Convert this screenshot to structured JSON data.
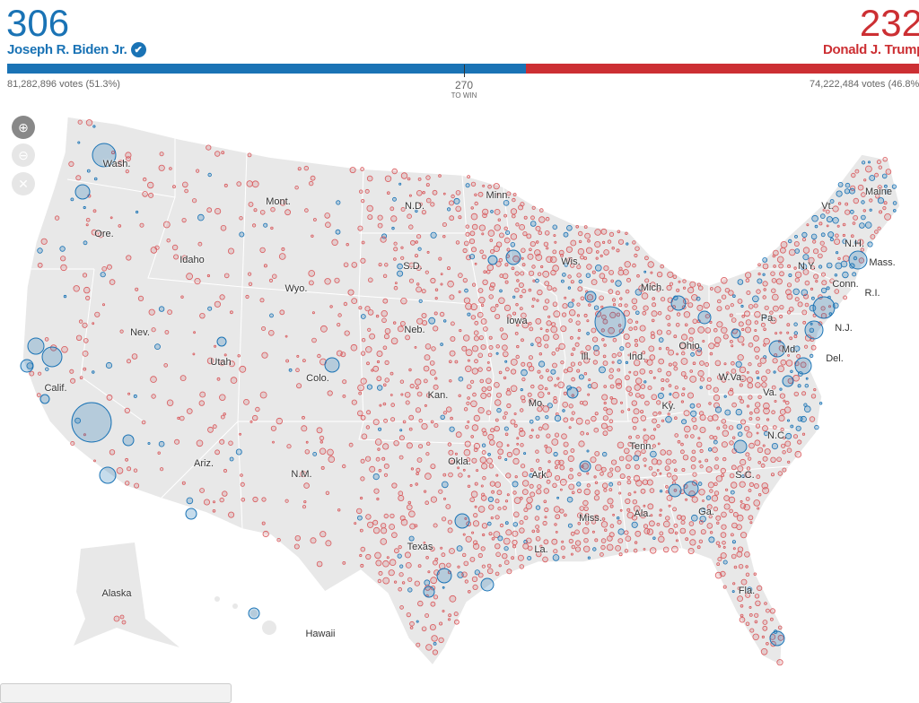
{
  "header": {
    "biden": {
      "electoral_votes": "306",
      "name": "Joseph R. Biden Jr.",
      "votes": "81,282,896 votes (51.3%)",
      "winner_icon": "check-circle-icon",
      "color": "#1a73b5"
    },
    "trump": {
      "electoral_votes": "232",
      "name": "Donald J. Trump",
      "votes": "74,222,484 votes (46.8%)",
      "color": "#cc2f33"
    },
    "to_win_number": "270",
    "to_win_label": "TO WIN",
    "biden_share_of_538": 0.5688
  },
  "controls": {
    "zoom_in": "zoom-in-icon",
    "zoom_out": "zoom-out-icon",
    "reset": "close-icon"
  },
  "map": {
    "states": [
      "Wash.",
      "Ore.",
      "Idaho",
      "Mont.",
      "Wyo.",
      "N.D.",
      "S.D.",
      "Neb.",
      "Kan.",
      "Okla.",
      "Texas",
      "N.M.",
      "Ariz.",
      "Utah",
      "Nev.",
      "Calif.",
      "Colo.",
      "Minn.",
      "Wis.",
      "Iowa",
      "Mo.",
      "Ark.",
      "La.",
      "Miss.",
      "Ala.",
      "Tenn.",
      "Ky.",
      "Ill.",
      "Ind.",
      "Ohio",
      "Mich.",
      "Pa.",
      "N.Y.",
      "Vt.",
      "N.H.",
      "Maine",
      "Mass.",
      "Conn.",
      "R.I.",
      "N.J.",
      "Del.",
      "Md.",
      "Va.",
      "W.Va.",
      "N.C.",
      "S.C.",
      "Ga.",
      "Fla.",
      "Alaska",
      "Hawaii"
    ]
  }
}
